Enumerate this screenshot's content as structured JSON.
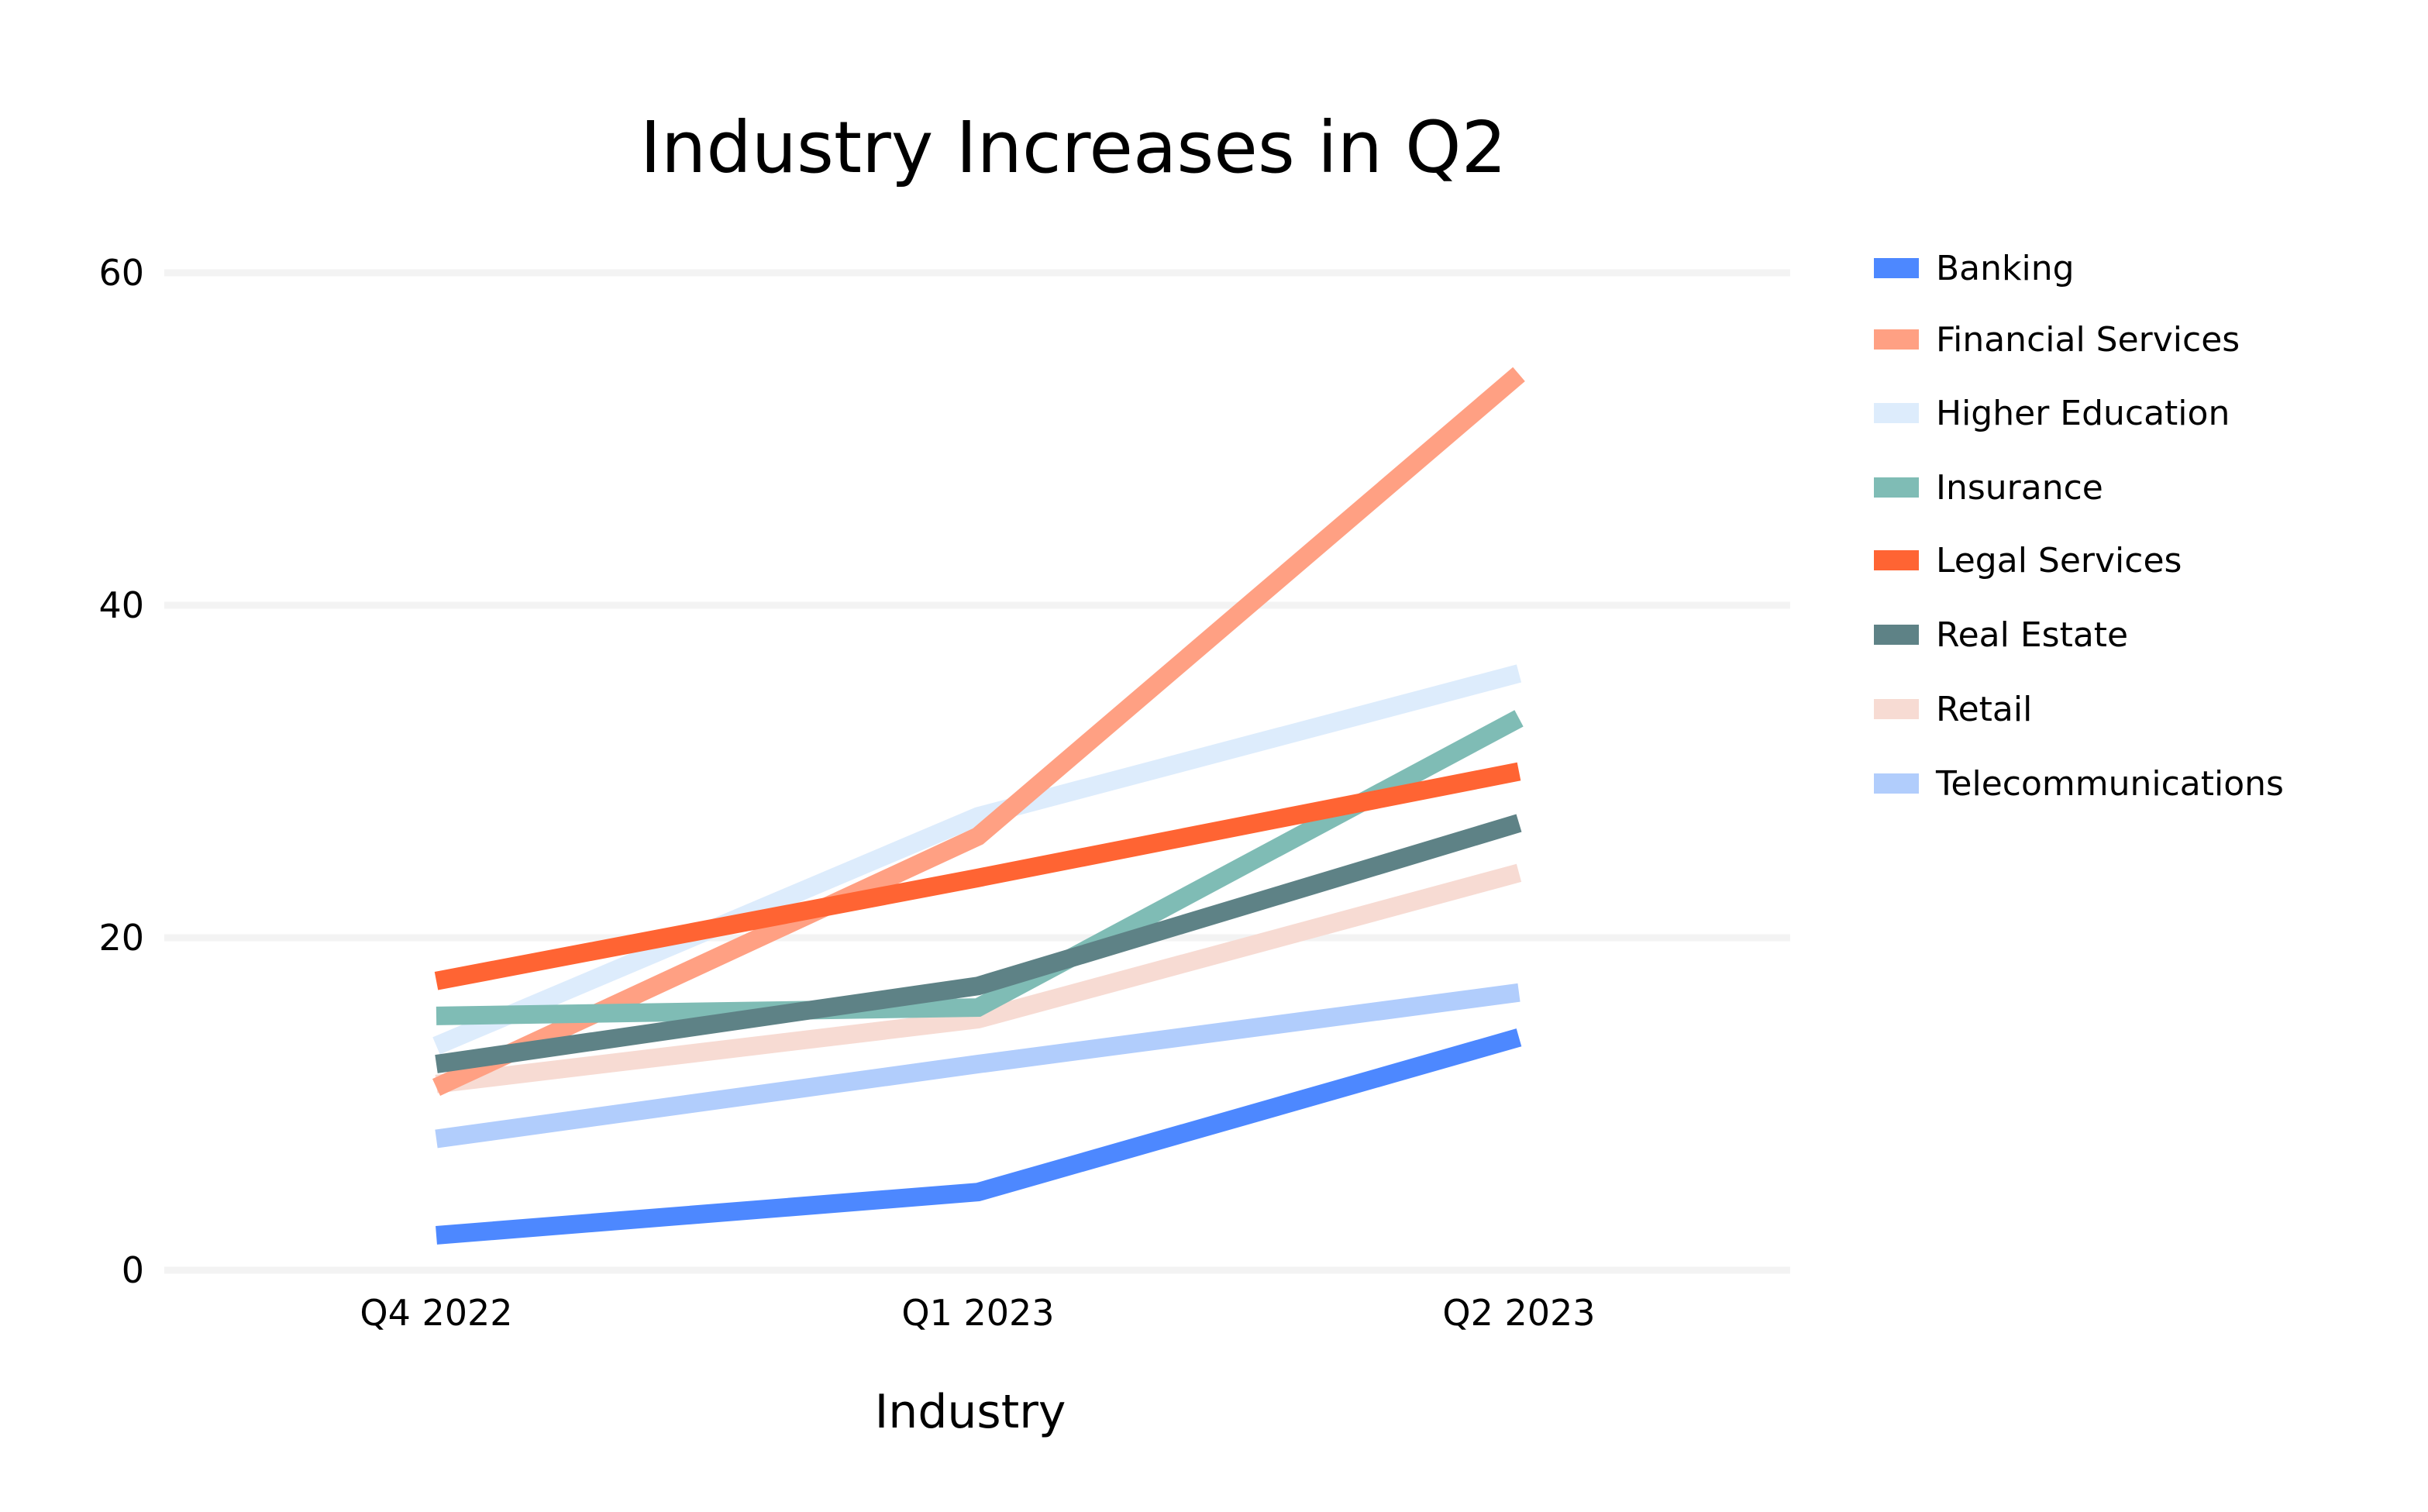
{
  "chart_data": {
    "type": "line",
    "title": "Industry Increases in Q2",
    "xlabel": "Industry",
    "ylabel": "",
    "categories": [
      "Q4 2022",
      "Q1 2023",
      "Q2 2023"
    ],
    "ylim": [
      0,
      60
    ],
    "yticks": [
      0,
      20,
      40,
      60
    ],
    "grid": true,
    "legend_position": "right",
    "series": [
      {
        "name": "Banking",
        "color": "#4d88ff",
        "values": [
          2.1,
          4.7,
          14.0
        ]
      },
      {
        "name": "Financial Services",
        "color": "#ffa083",
        "values": [
          11.0,
          26.1,
          53.9
        ]
      },
      {
        "name": "Higher Education",
        "color": "#ddecfc",
        "values": [
          13.5,
          27.3,
          35.9
        ]
      },
      {
        "name": "Insurance",
        "color": "#7fbcb5",
        "values": [
          15.3,
          15.8,
          33.2
        ]
      },
      {
        "name": "Legal Services",
        "color": "#ff6433",
        "values": [
          17.4,
          23.6,
          30.0
        ]
      },
      {
        "name": "Real Estate",
        "color": "#5e8286",
        "values": [
          12.4,
          17.1,
          26.9
        ]
      },
      {
        "name": "Retail",
        "color": "#f7dbd3",
        "values": [
          11.2,
          15.1,
          23.9
        ]
      },
      {
        "name": "Telecommunications",
        "color": "#b1cdfc",
        "values": [
          7.9,
          12.4,
          16.7
        ]
      }
    ]
  }
}
